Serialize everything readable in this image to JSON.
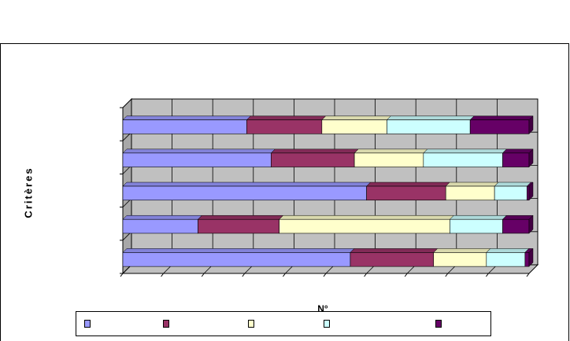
{
  "chart_data": {
    "type": "bar",
    "orientation": "horizontal",
    "stacked": true,
    "title": "",
    "xlabel": "N°",
    "ylabel": "Critères",
    "categories": [
      "",
      "",
      "",
      "",
      ""
    ],
    "xlim": [
      0,
      100
    ],
    "grid": true,
    "legend": "bottom",
    "series": [
      {
        "name": "",
        "color": "#9999FF",
        "values": [
          30.5,
          36.5,
          60,
          18.5,
          56
        ]
      },
      {
        "name": "",
        "color": "#993366",
        "values": [
          18.5,
          20.5,
          19.5,
          20,
          20.5
        ]
      },
      {
        "name": "",
        "color": "#FFFFCC",
        "values": [
          16,
          17,
          12,
          42,
          13
        ]
      },
      {
        "name": "",
        "color": "#CCFFFF",
        "values": [
          20.5,
          19.5,
          8,
          13,
          9.5
        ]
      },
      {
        "name": "",
        "color": "#660066",
        "values": [
          14.5,
          6.5,
          0.5,
          6.5,
          1
        ]
      }
    ]
  },
  "legend_items": [
    {
      "label": "",
      "color": "#9999FF"
    },
    {
      "label": "",
      "color": "#993366"
    },
    {
      "label": "",
      "color": "#FFFFCC"
    },
    {
      "label": "",
      "color": "#CCFFFF"
    },
    {
      "label": "",
      "color": "#660066"
    }
  ]
}
